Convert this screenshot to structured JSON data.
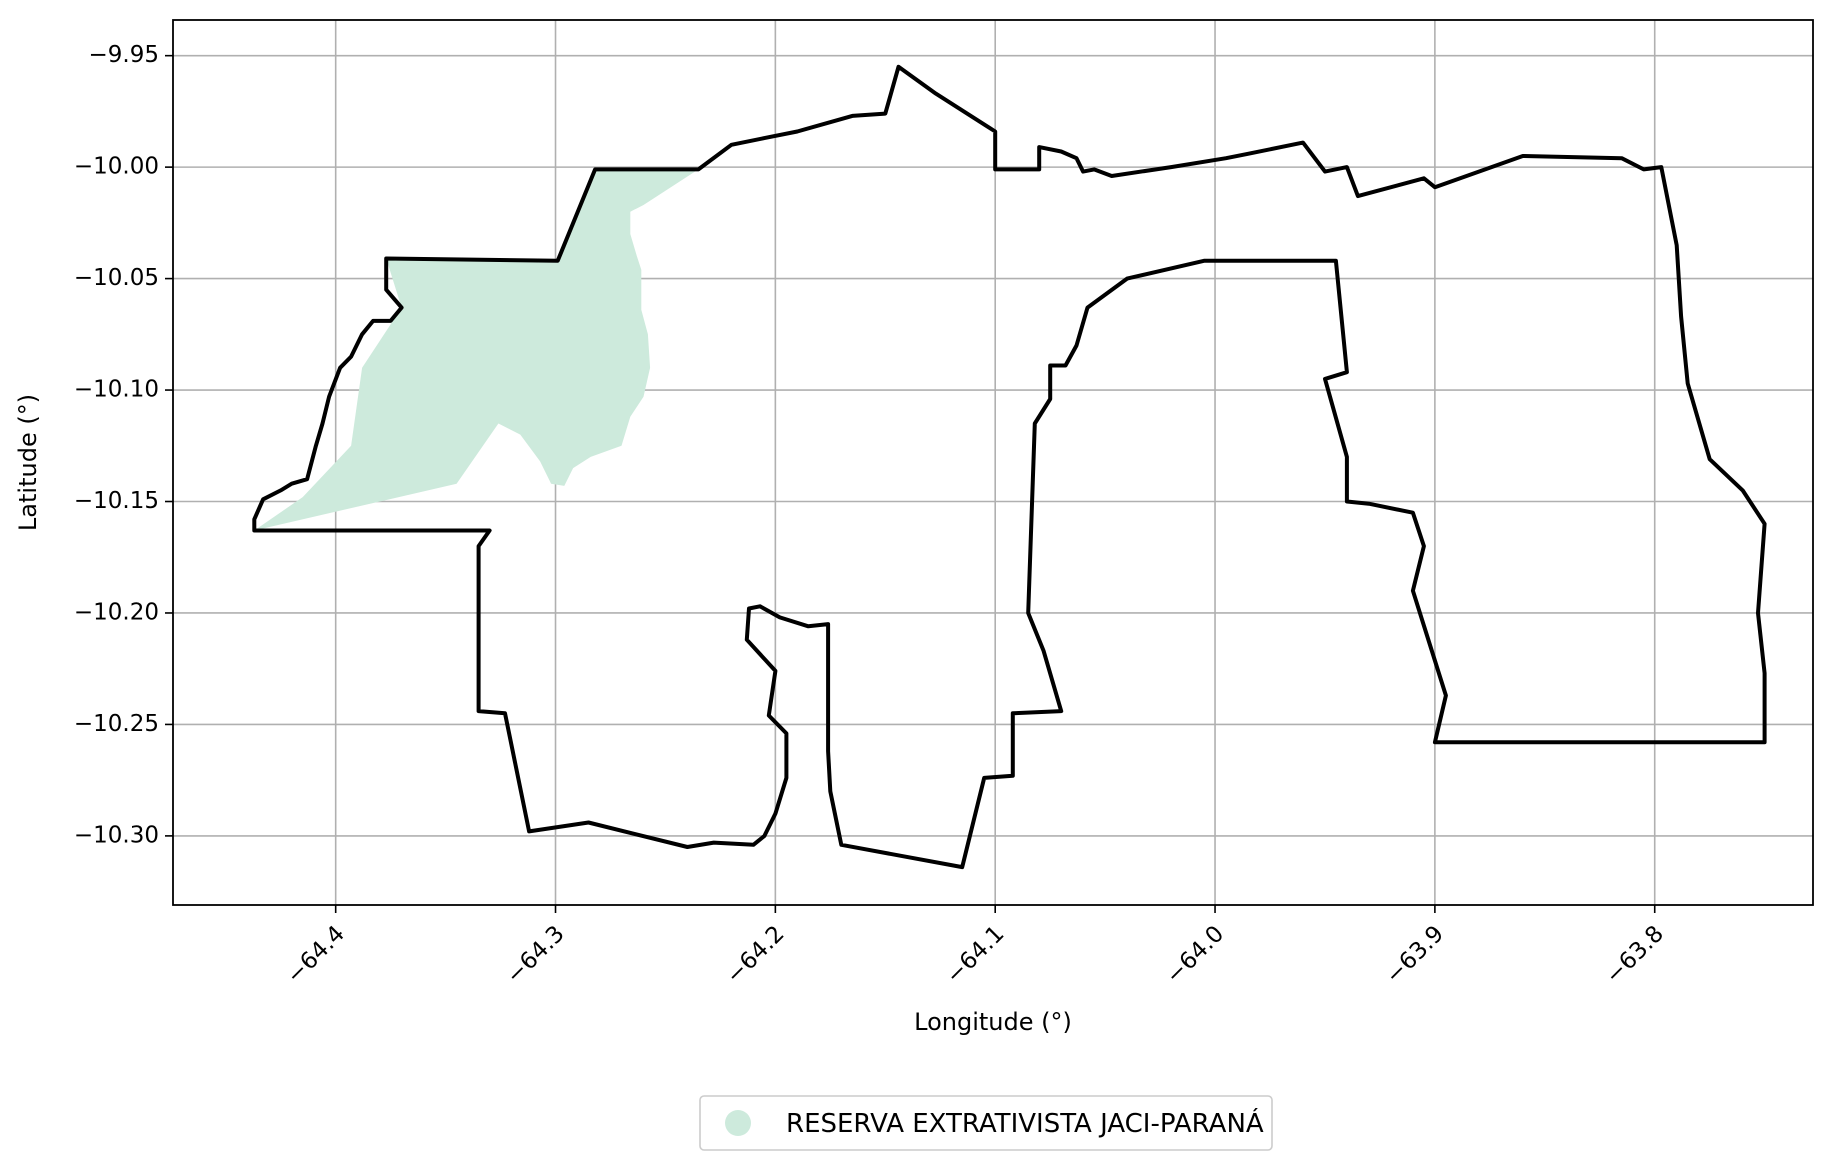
{
  "chart_data": {
    "type": "map",
    "xlabel": "Longitude (°)",
    "ylabel": "Latitude (°)",
    "xlim": [
      -64.474,
      -63.728
    ],
    "ylim": [
      -10.331,
      -9.934
    ],
    "x_ticks": [
      -64.4,
      -64.3,
      -64.2,
      -64.1,
      -64.0,
      -63.9,
      -63.8
    ],
    "x_tick_labels": [
      "−64.4",
      "−64.3",
      "−64.2",
      "−64.1",
      "−64.0",
      "−63.9",
      "−63.8"
    ],
    "y_ticks": [
      -9.95,
      -10.0,
      -10.05,
      -10.1,
      -10.15,
      -10.2,
      -10.25,
      -10.3
    ],
    "y_tick_labels": [
      "−9.95",
      "−10.00",
      "−10.05",
      "−10.10",
      "−10.15",
      "−10.20",
      "−10.25",
      "−10.30"
    ],
    "grid": true,
    "legend": {
      "placement": "bottom-center",
      "entries": [
        {
          "label": "RESERVA EXTRATIVISTA JACI-PARANÁ",
          "color": "#cdeadc"
        }
      ]
    },
    "fill_color": "#cdeadc",
    "outline_color": "#000000",
    "filled_area": [
      [
        -64.437,
        -10.163
      ],
      [
        -64.345,
        -10.142
      ],
      [
        -64.326,
        -10.115
      ],
      [
        -64.316,
        -10.12
      ],
      [
        -64.307,
        -10.132
      ],
      [
        -64.302,
        -10.142
      ],
      [
        -64.296,
        -10.143
      ],
      [
        -64.292,
        -10.135
      ],
      [
        -64.284,
        -10.13
      ],
      [
        -64.27,
        -10.125
      ],
      [
        -64.266,
        -10.112
      ],
      [
        -64.26,
        -10.103
      ],
      [
        -64.257,
        -10.09
      ],
      [
        -64.258,
        -10.075
      ],
      [
        -64.261,
        -10.064
      ],
      [
        -64.261,
        -10.055
      ],
      [
        -64.261,
        -10.046
      ],
      [
        -64.263,
        -10.04
      ],
      [
        -64.266,
        -10.03
      ],
      [
        -64.266,
        -10.02
      ],
      [
        -64.26,
        -10.017
      ],
      [
        -64.235,
        -10.001
      ],
      [
        -64.282,
        -10.001
      ],
      [
        -64.299,
        -10.042
      ],
      [
        -64.377,
        -10.041
      ],
      [
        -64.37,
        -10.063
      ],
      [
        -64.388,
        -10.09
      ],
      [
        -64.393,
        -10.125
      ],
      [
        -64.415,
        -10.148
      ]
    ],
    "boundary": [
      [
        -64.437,
        -10.163
      ],
      [
        -64.437,
        -10.158
      ],
      [
        -64.433,
        -10.149
      ],
      [
        -64.425,
        -10.145
      ],
      [
        -64.42,
        -10.142
      ],
      [
        -64.413,
        -10.14
      ],
      [
        -64.409,
        -10.125
      ],
      [
        -64.406,
        -10.115
      ],
      [
        -64.403,
        -10.103
      ],
      [
        -64.398,
        -10.09
      ],
      [
        -64.393,
        -10.085
      ],
      [
        -64.388,
        -10.075
      ],
      [
        -64.383,
        -10.069
      ],
      [
        -64.375,
        -10.069
      ],
      [
        -64.37,
        -10.063
      ],
      [
        -64.377,
        -10.055
      ],
      [
        -64.377,
        -10.041
      ],
      [
        -64.299,
        -10.042
      ],
      [
        -64.282,
        -10.001
      ],
      [
        -64.235,
        -10.001
      ],
      [
        -64.22,
        -9.99
      ],
      [
        -64.205,
        -9.987
      ],
      [
        -64.19,
        -9.984
      ],
      [
        -64.165,
        -9.977
      ],
      [
        -64.15,
        -9.976
      ],
      [
        -64.144,
        -9.955
      ],
      [
        -64.127,
        -9.967
      ],
      [
        -64.1,
        -9.984
      ],
      [
        -64.1,
        -10.001
      ],
      [
        -64.08,
        -10.001
      ],
      [
        -64.08,
        -9.991
      ],
      [
        -64.07,
        -9.993
      ],
      [
        -64.063,
        -9.996
      ],
      [
        -64.06,
        -10.002
      ],
      [
        -64.055,
        -10.001
      ],
      [
        -64.047,
        -10.004
      ],
      [
        -64.02,
        -10.0
      ],
      [
        -63.995,
        -9.996
      ],
      [
        -63.985,
        -9.994
      ],
      [
        -63.96,
        -9.989
      ],
      [
        -63.95,
        -10.002
      ],
      [
        -63.94,
        -10.0
      ],
      [
        -63.935,
        -10.013
      ],
      [
        -63.905,
        -10.005
      ],
      [
        -63.9,
        -10.009
      ],
      [
        -63.86,
        -9.995
      ],
      [
        -63.815,
        -9.996
      ],
      [
        -63.805,
        -10.001
      ],
      [
        -63.797,
        -10.0
      ],
      [
        -63.79,
        -10.035
      ],
      [
        -63.788,
        -10.067
      ],
      [
        -63.785,
        -10.097
      ],
      [
        -63.775,
        -10.131
      ],
      [
        -63.76,
        -10.145
      ],
      [
        -63.75,
        -10.16
      ],
      [
        -63.753,
        -10.2
      ],
      [
        -63.75,
        -10.227
      ],
      [
        -63.75,
        -10.258
      ],
      [
        -63.8,
        -10.258
      ],
      [
        -63.9,
        -10.258
      ],
      [
        -63.895,
        -10.237
      ],
      [
        -63.91,
        -10.19
      ],
      [
        -63.905,
        -10.17
      ],
      [
        -63.91,
        -10.155
      ],
      [
        -63.93,
        -10.151
      ],
      [
        -63.94,
        -10.15
      ],
      [
        -63.94,
        -10.13
      ],
      [
        -63.95,
        -10.095
      ],
      [
        -63.94,
        -10.092
      ],
      [
        -63.945,
        -10.042
      ],
      [
        -64.005,
        -10.042
      ],
      [
        -64.04,
        -10.05
      ],
      [
        -64.058,
        -10.063
      ],
      [
        -64.063,
        -10.08
      ],
      [
        -64.068,
        -10.089
      ],
      [
        -64.075,
        -10.089
      ],
      [
        -64.075,
        -10.104
      ],
      [
        -64.082,
        -10.115
      ],
      [
        -64.085,
        -10.2
      ],
      [
        -64.078,
        -10.217
      ],
      [
        -64.07,
        -10.244
      ],
      [
        -64.092,
        -10.245
      ],
      [
        -64.092,
        -10.273
      ],
      [
        -64.105,
        -10.274
      ],
      [
        -64.115,
        -10.314
      ],
      [
        -64.17,
        -10.304
      ],
      [
        -64.175,
        -10.28
      ],
      [
        -64.176,
        -10.262
      ],
      [
        -64.176,
        -10.205
      ],
      [
        -64.185,
        -10.206
      ],
      [
        -64.198,
        -10.202
      ],
      [
        -64.207,
        -10.197
      ],
      [
        -64.212,
        -10.198
      ],
      [
        -64.213,
        -10.212
      ],
      [
        -64.2,
        -10.226
      ],
      [
        -64.203,
        -10.246
      ],
      [
        -64.195,
        -10.254
      ],
      [
        -64.195,
        -10.274
      ],
      [
        -64.2,
        -10.29
      ],
      [
        -64.205,
        -10.3
      ],
      [
        -64.21,
        -10.304
      ],
      [
        -64.228,
        -10.303
      ],
      [
        -64.24,
        -10.305
      ],
      [
        -64.285,
        -10.294
      ],
      [
        -64.312,
        -10.298
      ],
      [
        -64.323,
        -10.245
      ],
      [
        -64.335,
        -10.244
      ],
      [
        -64.335,
        -10.17
      ],
      [
        -64.33,
        -10.163
      ],
      [
        -64.437,
        -10.163
      ]
    ]
  }
}
